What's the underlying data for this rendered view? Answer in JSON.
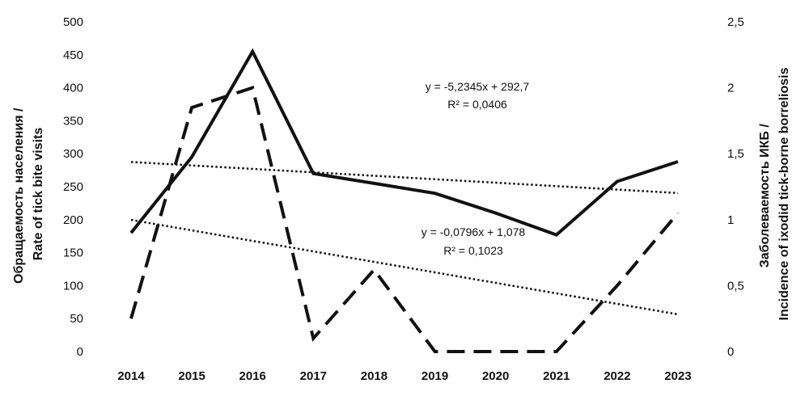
{
  "chart_data": {
    "type": "line",
    "categories": [
      "2014",
      "2015",
      "2016",
      "2017",
      "2018",
      "2019",
      "2020",
      "2021",
      "2022",
      "2023"
    ],
    "series": [
      {
        "axis": "left",
        "style": "solid",
        "values": [
          180,
          295,
          455,
          270,
          255,
          240,
          210,
          177,
          258,
          288
        ]
      },
      {
        "axis": "right",
        "style": "dashed",
        "values": [
          0.25,
          1.85,
          2.0,
          0.1,
          0.62,
          0.0,
          0.0,
          0.0,
          0.5,
          1.05
        ]
      }
    ],
    "trendlines": [
      {
        "axis": "left",
        "slope": -5.2345,
        "intercept": 292.7,
        "equation": "y = -5,2345x + 292,7",
        "r2": "R² = 0,0406"
      },
      {
        "axis": "right",
        "slope": -0.0796,
        "intercept": 1.078,
        "equation": "y = -0,0796x + 1,078",
        "r2": "R² = 0,1023"
      }
    ],
    "yleft": {
      "ylim": [
        0,
        500
      ],
      "ticks": [
        "0",
        "50",
        "100",
        "150",
        "200",
        "250",
        "300",
        "350",
        "400",
        "450",
        "500"
      ],
      "label_line1": "Обращаемость населения /",
      "label_line2": "Rate of tick bite visits"
    },
    "yright": {
      "ylim": [
        0,
        2.5
      ],
      "ticks": [
        "0",
        "0,5",
        "1",
        "1,5",
        "2",
        "2,5"
      ],
      "label_line1": "Заболеваемость ИКБ /",
      "label_line2": "Incidence of ixodid tick-borne borreliosis"
    },
    "grid": false,
    "legend": "none",
    "colors": {
      "lines": "#111111",
      "background": "#ffffff"
    }
  }
}
